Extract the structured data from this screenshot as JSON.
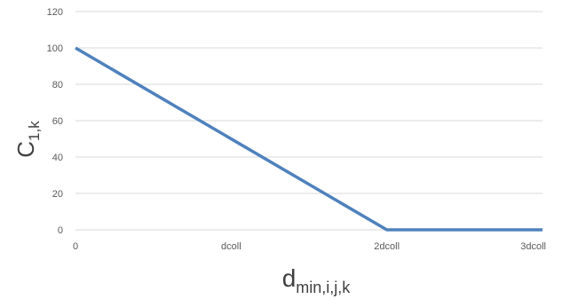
{
  "chart_data": {
    "type": "line",
    "categories": [
      "0",
      "dcoll",
      "2dcoll",
      "3dcoll"
    ],
    "series": [
      {
        "x": [
          0,
          2,
          3
        ],
        "values": [
          100,
          0,
          0
        ]
      }
    ],
    "ylim": [
      0,
      120
    ],
    "yticks": [
      "0",
      "20",
      "40",
      "60",
      "80",
      "100",
      "120"
    ],
    "xlabel": {
      "main": "d",
      "sub": "min,i,j,k"
    },
    "ylabel": {
      "main": "C",
      "sub": "1,k"
    },
    "grid": true,
    "colors": {
      "line": "#4f81bd",
      "grid": "#d9d9d9",
      "tick_text": "#595959"
    }
  }
}
